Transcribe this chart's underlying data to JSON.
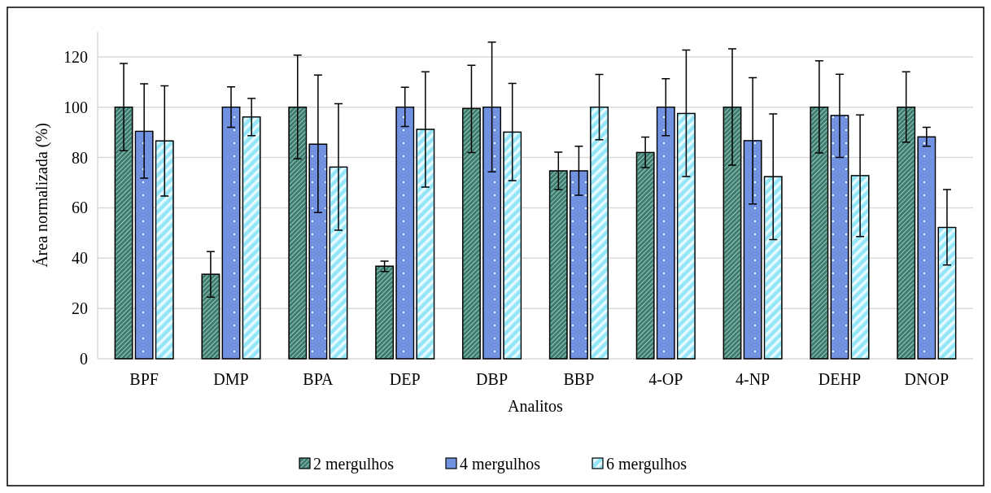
{
  "chart_data": {
    "type": "bar",
    "xlabel": "Analitos",
    "ylabel": "Área normalizada (%)",
    "categories": [
      "BPF",
      "DMP",
      "BPA",
      "DEP",
      "DBP",
      "BBP",
      "4-OP",
      "4-NP",
      "DEHP",
      "DNOP"
    ],
    "series": [
      {
        "name": "2 mergulhos",
        "color": "#3a7d6e",
        "values": [
          100,
          33.6,
          100,
          36.8,
          99.5,
          74.7,
          82.0,
          100,
          100,
          100
        ],
        "errors": [
          [
            82.7,
            117.4
          ],
          [
            24.5,
            42.6
          ],
          [
            79.5,
            120.7
          ],
          [
            34.7,
            38.8
          ],
          [
            82.0,
            116.7
          ],
          [
            67.3,
            82.1
          ],
          [
            76.0,
            88.1
          ],
          [
            77.0,
            123.2
          ],
          [
            81.8,
            118.4
          ],
          [
            86.1,
            114.1
          ]
        ]
      },
      {
        "name": "4 mergulhos",
        "color": "#7092e0",
        "values": [
          90.4,
          100,
          85.3,
          100,
          100,
          74.7,
          100,
          86.7,
          96.7,
          88.2
        ],
        "errors": [
          [
            71.8,
            109.3
          ],
          [
            92.0,
            108.1
          ],
          [
            58.1,
            112.8
          ],
          [
            92.3,
            107.9
          ],
          [
            74.3,
            125.9
          ],
          [
            65.0,
            84.5
          ],
          [
            88.7,
            111.3
          ],
          [
            61.5,
            111.7
          ],
          [
            80.0,
            113.1
          ],
          [
            84.5,
            92.0
          ]
        ]
      },
      {
        "name": "6 mergulhos",
        "color": "#93e6f8",
        "values": [
          86.6,
          96.1,
          76.2,
          91.2,
          90.1,
          100,
          97.5,
          72.4,
          72.8,
          52.2
        ],
        "errors": [
          [
            64.7,
            108.5
          ],
          [
            88.7,
            103.5
          ],
          [
            51.1,
            101.4
          ],
          [
            68.2,
            114.1
          ],
          [
            70.8,
            109.5
          ],
          [
            87.1,
            113.0
          ],
          [
            72.4,
            122.7
          ],
          [
            47.4,
            97.3
          ],
          [
            48.6,
            96.9
          ],
          [
            37.3,
            67.3
          ]
        ]
      }
    ],
    "ylim": [
      0,
      130
    ],
    "yticks": [
      0,
      20,
      40,
      60,
      80,
      100,
      120
    ],
    "grid": "y",
    "legend": "bottom"
  }
}
